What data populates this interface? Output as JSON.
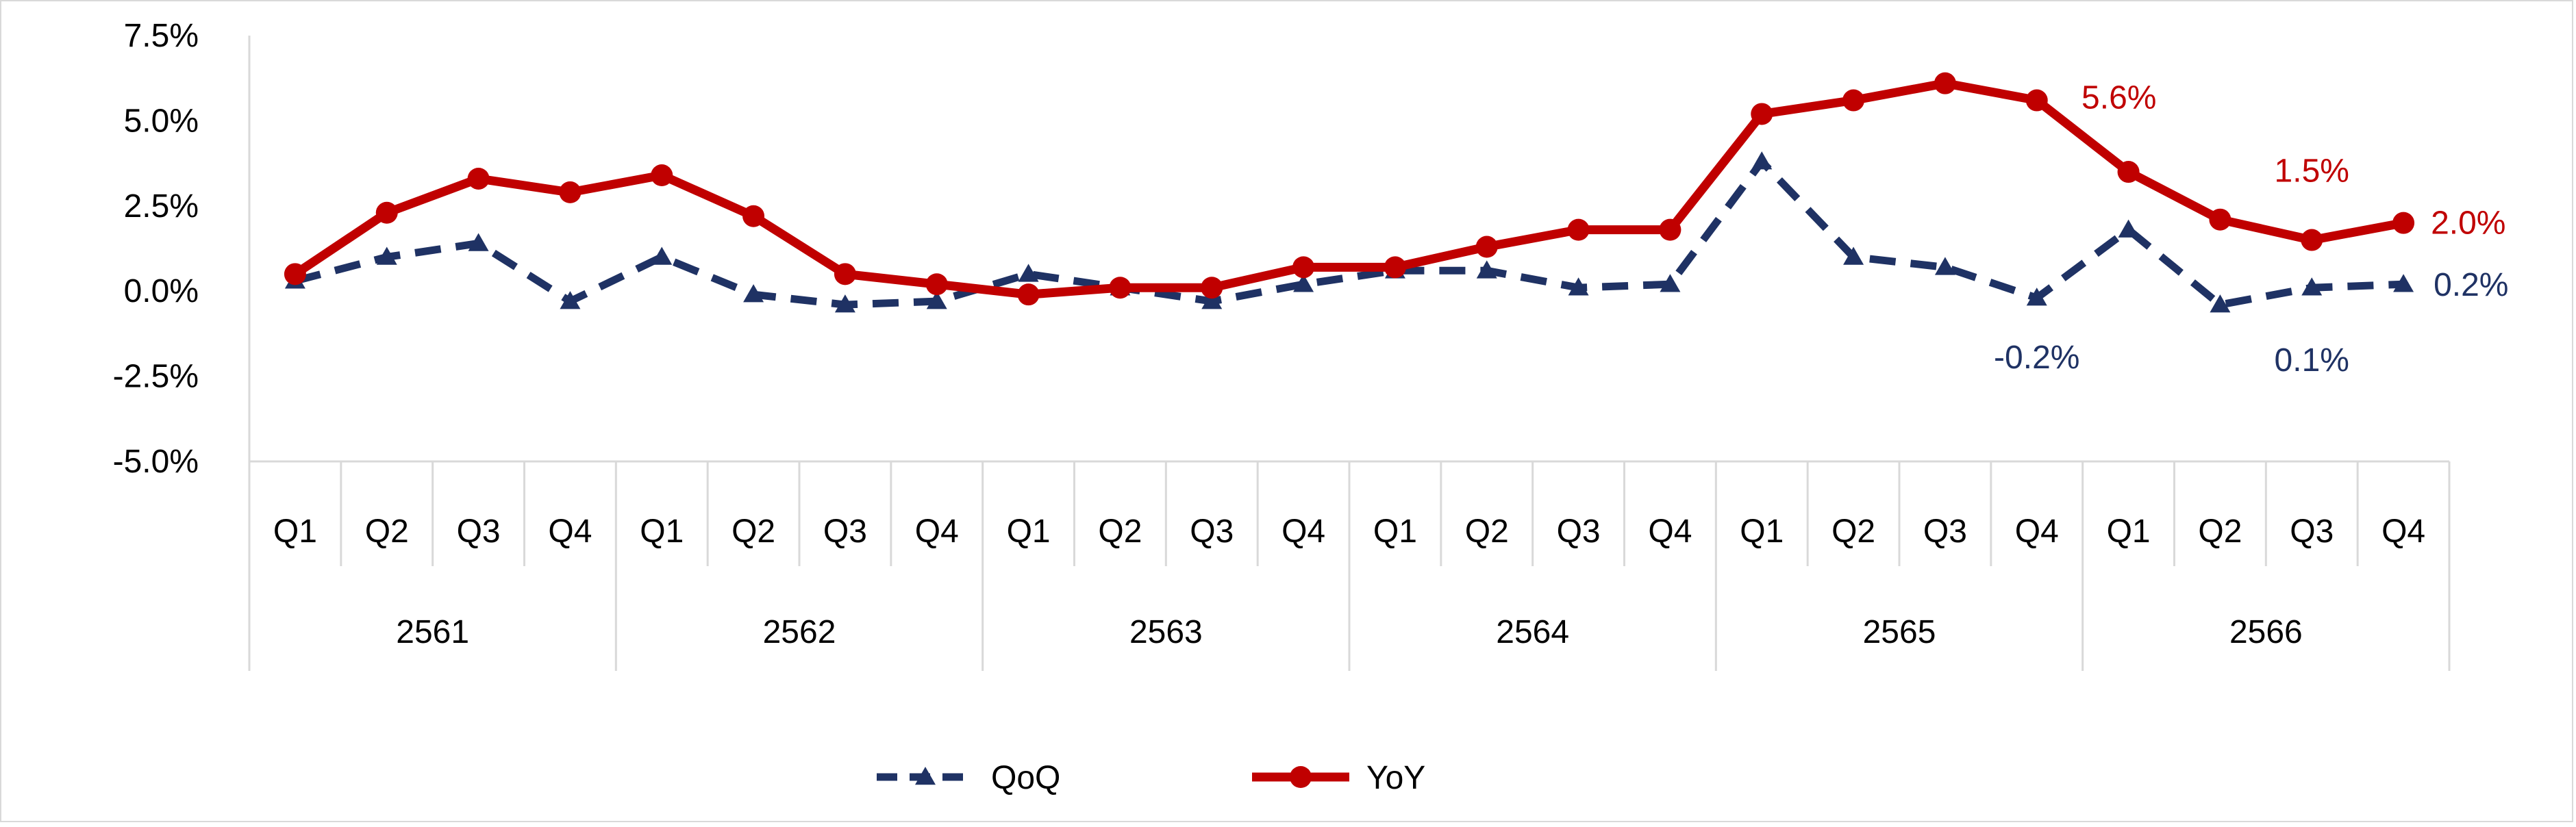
{
  "chart_data": {
    "type": "line",
    "categories": [
      "Q1",
      "Q2",
      "Q3",
      "Q4",
      "Q1",
      "Q2",
      "Q3",
      "Q4",
      "Q1",
      "Q2",
      "Q3",
      "Q4",
      "Q1",
      "Q2",
      "Q3",
      "Q4",
      "Q1",
      "Q2",
      "Q3",
      "Q4",
      "Q1",
      "Q2",
      "Q3",
      "Q4"
    ],
    "groups": [
      "2561",
      "2562",
      "2563",
      "2564",
      "2565",
      "2566"
    ],
    "yticks": [
      "7.5%",
      "5.0%",
      "2.5%",
      "0.0%",
      "-2.5%",
      "-5.0%"
    ],
    "ylim": [
      -5.0,
      7.5
    ],
    "y_unit": "%",
    "legend_position": "bottom",
    "grid": false,
    "series": [
      {
        "name": "QoQ",
        "color": "#1f3264",
        "style": "dashed",
        "marker": "triangle",
        "values": [
          0.3,
          1.0,
          1.4,
          -0.3,
          1.0,
          -0.1,
          -0.4,
          -0.3,
          0.5,
          0.1,
          -0.3,
          0.2,
          0.6,
          0.6,
          0.1,
          0.2,
          3.8,
          1.0,
          0.7,
          -0.2,
          1.8,
          -0.4,
          0.1,
          0.2
        ]
      },
      {
        "name": "YoY",
        "color": "#c00000",
        "style": "solid",
        "marker": "circle",
        "values": [
          0.5,
          2.3,
          3.3,
          2.9,
          3.4,
          2.2,
          0.5,
          0.2,
          -0.1,
          0.1,
          0.1,
          0.7,
          0.7,
          1.3,
          1.8,
          1.8,
          5.2,
          5.6,
          6.1,
          5.6,
          3.5,
          2.1,
          1.5,
          2.0
        ]
      }
    ],
    "annotations": [
      {
        "series": "YoY",
        "index": 19,
        "text": "5.6%"
      },
      {
        "series": "YoY",
        "index": 22,
        "text": "1.5%"
      },
      {
        "series": "YoY",
        "index": 23,
        "text": "2.0%"
      },
      {
        "series": "QoQ",
        "index": 19,
        "text": "-0.2%"
      },
      {
        "series": "QoQ",
        "index": 22,
        "text": "0.1%"
      },
      {
        "series": "QoQ",
        "index": 23,
        "text": "0.2%"
      }
    ]
  }
}
